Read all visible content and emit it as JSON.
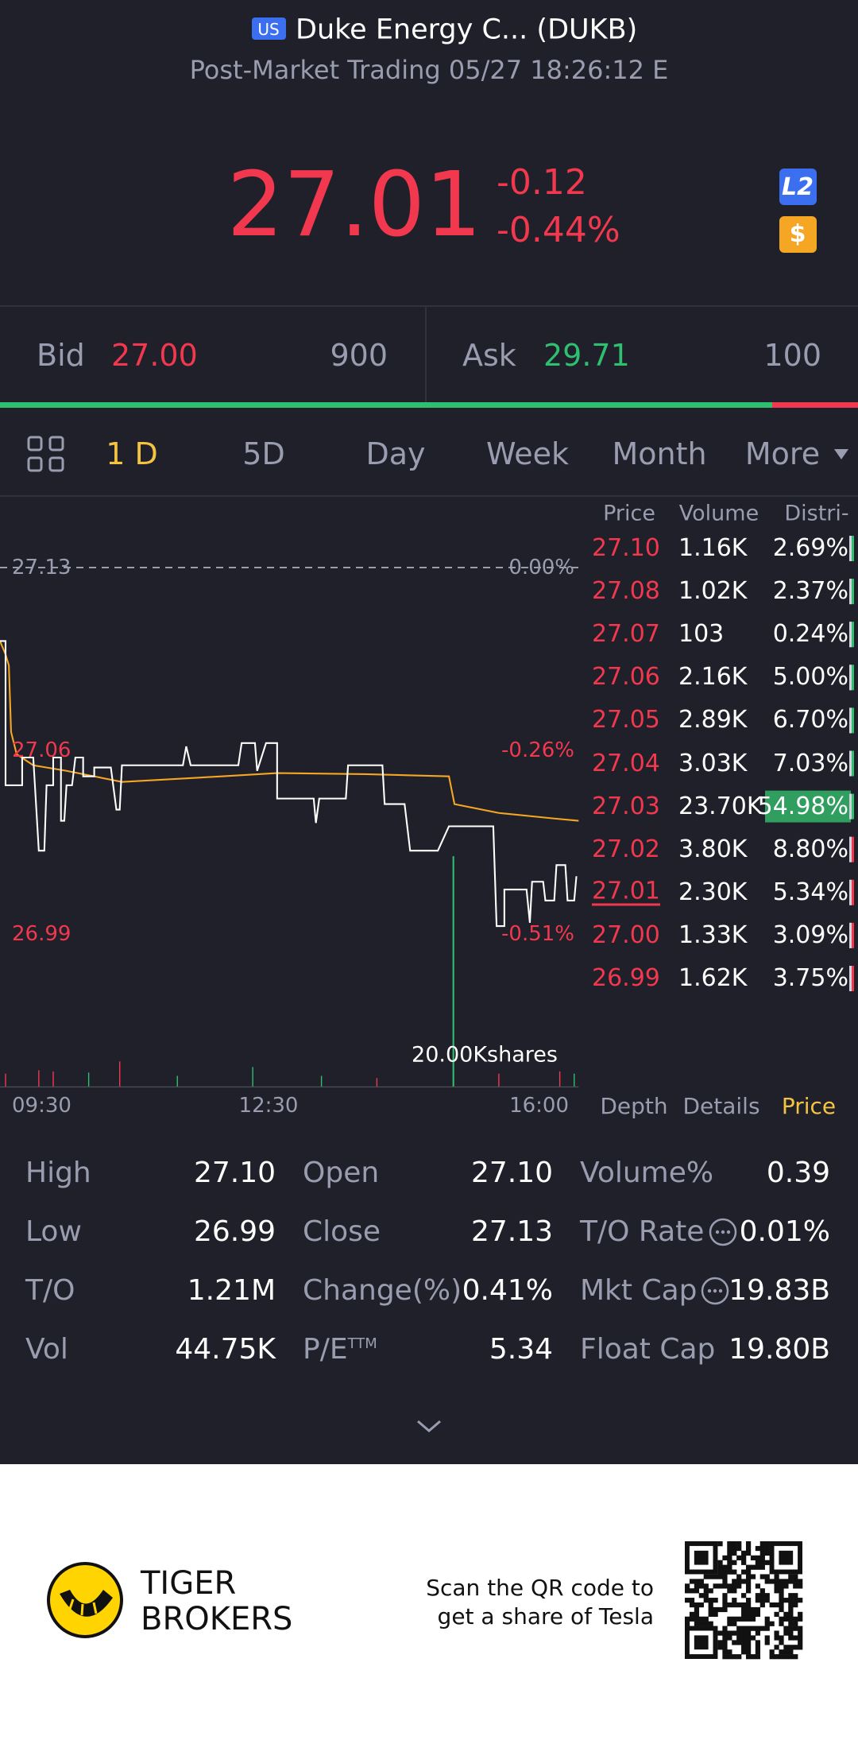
{
  "header": {
    "market_badge": "US",
    "name": "Duke Energy C... (DUKB)",
    "status": "Post-Market Trading 05/27 18:26:12 E"
  },
  "quote": {
    "price": "27.01",
    "change": "-0.12",
    "change_pct": "-0.44%",
    "badges": [
      "L2",
      "$"
    ]
  },
  "bid_ask": {
    "bid_label": "Bid",
    "bid_price": "27.00",
    "bid_size": "900",
    "ask_label": "Ask",
    "ask_price": "29.71",
    "ask_size": "100"
  },
  "tabs": [
    "1 D",
    "5D",
    "Day",
    "Week",
    "Month",
    "More"
  ],
  "chart": {
    "price_labels": [
      "27.13",
      "27.06",
      "26.99"
    ],
    "pct_labels": [
      "0.00%",
      "-0.26%",
      "-0.51%"
    ],
    "x_labels": [
      "09:30",
      "12:30",
      "16:00"
    ],
    "volume_label": "20.00Kshares"
  },
  "price_table": {
    "columns": [
      "Price",
      "Volume",
      "Distri-"
    ],
    "rows": [
      [
        "27.10",
        "1.16K",
        "2.69%"
      ],
      [
        "27.08",
        "1.02K",
        "2.37%"
      ],
      [
        "27.07",
        "103",
        "0.24%"
      ],
      [
        "27.06",
        "2.16K",
        "5.00%"
      ],
      [
        "27.05",
        "2.89K",
        "6.70%"
      ],
      [
        "27.04",
        "3.03K",
        "7.03%"
      ],
      [
        "27.03",
        "23.70K",
        "54.98%"
      ],
      [
        "27.02",
        "3.80K",
        "8.80%"
      ],
      [
        "27.01",
        "2.30K",
        "5.34%"
      ],
      [
        "27.00",
        "1.33K",
        "3.09%"
      ],
      [
        "26.99",
        "1.62K",
        "3.75%"
      ]
    ]
  },
  "sub_tabs": [
    "Depth",
    "Details",
    "Price"
  ],
  "stats": {
    "rows": [
      [
        {
          "label": "High",
          "value": "27.10"
        },
        {
          "label": "Open",
          "value": "27.10"
        },
        {
          "label": "Volume%",
          "value": "0.39"
        }
      ],
      [
        {
          "label": "Low",
          "value": "26.99"
        },
        {
          "label": "Close",
          "value": "27.13"
        },
        {
          "label": "T/O Rate",
          "value": "0.01%"
        }
      ],
      [
        {
          "label": "T/O",
          "value": "1.21M"
        },
        {
          "label": "Change(%)",
          "value": "0.41%"
        },
        {
          "label": "Mkt Cap",
          "value": "19.83B"
        }
      ],
      [
        {
          "label": "Vol",
          "value": "44.75K"
        },
        {
          "label": "P/E",
          "sup": "TTM",
          "value": "5.34"
        },
        {
          "label": "Float Cap",
          "value": "19.80B"
        }
      ]
    ]
  },
  "footer": {
    "brand": [
      "TIGER",
      "BROKERS"
    ],
    "promo": [
      "Scan the QR code to",
      "get a share of Tesla"
    ]
  }
}
